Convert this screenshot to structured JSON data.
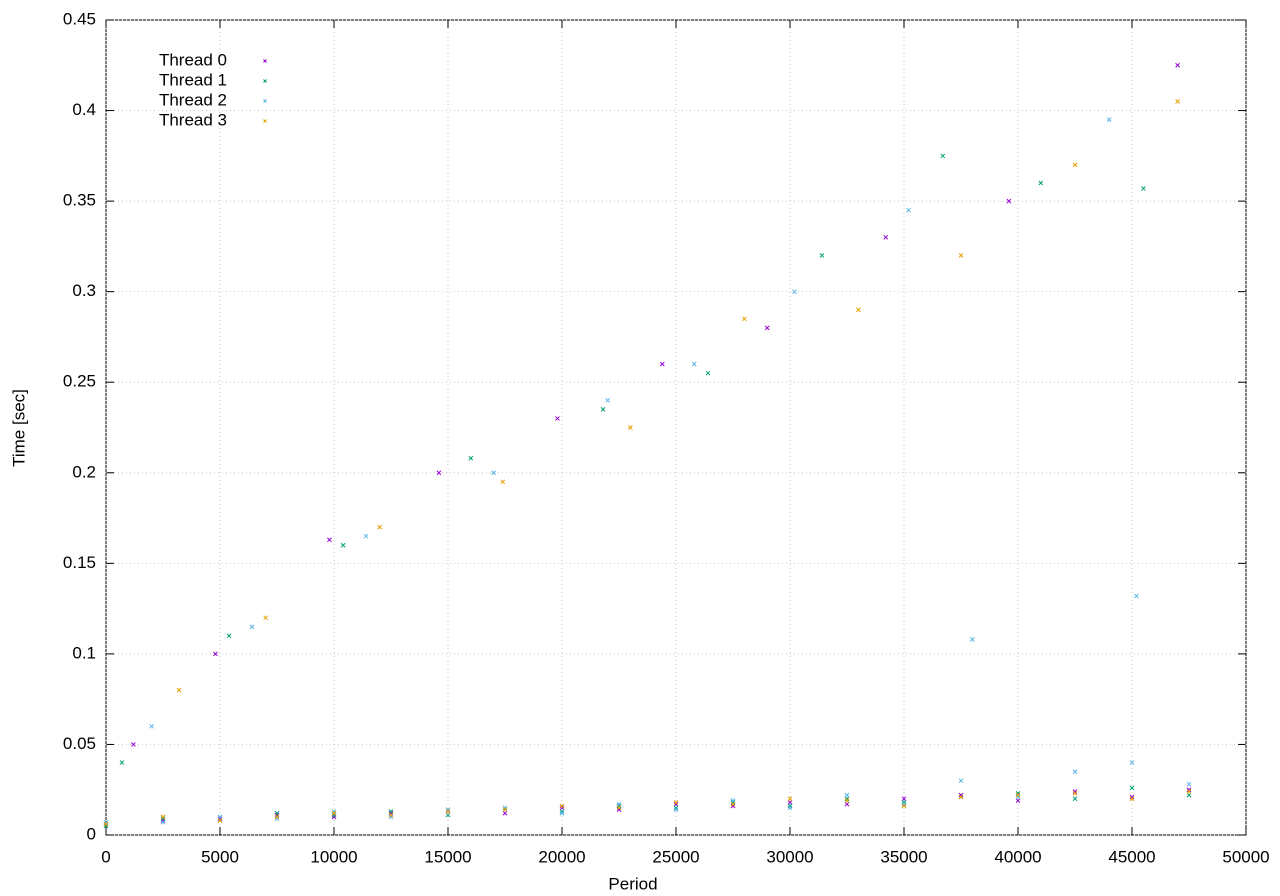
{
  "chart_data": {
    "type": "scatter",
    "xlabel": "Period",
    "ylabel": "Time [sec]",
    "xlim": [
      0,
      50000
    ],
    "xticks": [
      0,
      5000,
      10000,
      15000,
      20000,
      25000,
      30000,
      35000,
      40000,
      45000,
      50000
    ],
    "ylim": [
      0,
      0.45
    ],
    "yticks": [
      0,
      0.05,
      0.1,
      0.15,
      0.2,
      0.25,
      0.3,
      0.35,
      0.4,
      0.45
    ],
    "grid": true,
    "legend": "top-left",
    "series": [
      {
        "name": "Thread 0",
        "color": "#9400d3",
        "x": [
          0,
          2500,
          5000,
          7500,
          10000,
          12500,
          15000,
          17500,
          20000,
          22500,
          25000,
          27500,
          30000,
          32500,
          35000,
          37500,
          40000,
          42500,
          45000,
          47500,
          1200,
          4800,
          9800,
          14600,
          19800,
          24400,
          29000,
          34200,
          39600,
          47000
        ],
        "values": [
          0.006,
          0.008,
          0.009,
          0.011,
          0.01,
          0.012,
          0.013,
          0.012,
          0.015,
          0.014,
          0.017,
          0.016,
          0.018,
          0.017,
          0.02,
          0.022,
          0.019,
          0.024,
          0.021,
          0.025,
          0.05,
          0.1,
          0.163,
          0.2,
          0.23,
          0.26,
          0.28,
          0.33,
          0.35,
          0.425
        ]
      },
      {
        "name": "Thread 1",
        "color": "#009e73",
        "x": [
          0,
          2500,
          5000,
          7500,
          10000,
          12500,
          15000,
          17500,
          20000,
          22500,
          25000,
          27500,
          30000,
          32500,
          35000,
          37500,
          40000,
          42500,
          45000,
          47500,
          700,
          5400,
          10400,
          16000,
          21800,
          26400,
          31400,
          36700,
          41000,
          45500
        ],
        "values": [
          0.005,
          0.009,
          0.008,
          0.012,
          0.011,
          0.013,
          0.011,
          0.014,
          0.013,
          0.016,
          0.015,
          0.018,
          0.016,
          0.02,
          0.018,
          0.021,
          0.023,
          0.02,
          0.026,
          0.022,
          0.04,
          0.11,
          0.16,
          0.208,
          0.235,
          0.255,
          0.32,
          0.375,
          0.36,
          0.357
        ]
      },
      {
        "name": "Thread 2",
        "color": "#56b4e9",
        "x": [
          0,
          2500,
          5000,
          7500,
          10000,
          12500,
          15000,
          17500,
          20000,
          22500,
          25000,
          27500,
          30000,
          32500,
          35000,
          37500,
          40000,
          42500,
          45000,
          47500,
          2000,
          6400,
          11400,
          17000,
          22000,
          25800,
          30200,
          35200,
          38000,
          44000,
          45200
        ],
        "values": [
          0.007,
          0.007,
          0.01,
          0.009,
          0.013,
          0.01,
          0.014,
          0.015,
          0.012,
          0.017,
          0.014,
          0.019,
          0.015,
          0.022,
          0.017,
          0.03,
          0.021,
          0.035,
          0.04,
          0.028,
          0.06,
          0.115,
          0.165,
          0.2,
          0.24,
          0.26,
          0.3,
          0.345,
          0.108,
          0.395,
          0.132
        ]
      },
      {
        "name": "Thread 3",
        "color": "#e69f00",
        "x": [
          0,
          2500,
          5000,
          7500,
          10000,
          12500,
          15000,
          17500,
          20000,
          22500,
          25000,
          27500,
          30000,
          32500,
          35000,
          37500,
          40000,
          42500,
          45000,
          47500,
          3200,
          7000,
          12000,
          17400,
          23000,
          28000,
          33000,
          37500,
          42500,
          47000
        ],
        "values": [
          0.006,
          0.01,
          0.008,
          0.01,
          0.012,
          0.011,
          0.013,
          0.014,
          0.016,
          0.015,
          0.018,
          0.017,
          0.02,
          0.019,
          0.016,
          0.021,
          0.022,
          0.023,
          0.02,
          0.024,
          0.08,
          0.12,
          0.17,
          0.195,
          0.225,
          0.285,
          0.29,
          0.32,
          0.37,
          0.405
        ]
      }
    ]
  }
}
